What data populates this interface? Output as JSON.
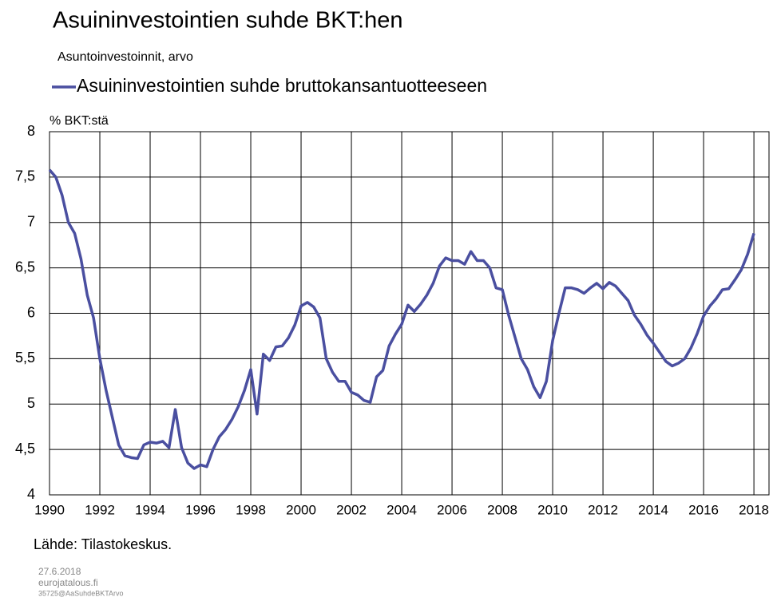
{
  "chart_data": {
    "type": "line",
    "title": "Asuininvestointien suhde BKT:hen",
    "subtitle": "Asuntoinvestoinnit, arvo",
    "y_label": "% BKT:stä",
    "source": "Lähde: Tilastokeskus.",
    "footer": [
      "27.6.2018",
      "eurojatalous.fi",
      "35725@AaSuhdeBKTArvo"
    ],
    "x": [
      1990,
      1990.25,
      1990.5,
      1990.75,
      1991,
      1991.25,
      1991.5,
      1991.75,
      1992,
      1992.25,
      1992.5,
      1992.75,
      1993,
      1993.25,
      1993.5,
      1993.75,
      1994,
      1994.25,
      1994.5,
      1994.75,
      1995,
      1995.25,
      1995.5,
      1995.75,
      1996,
      1996.25,
      1996.5,
      1996.75,
      1997,
      1997.25,
      1997.5,
      1997.75,
      1998,
      1998.25,
      1998.5,
      1998.75,
      1999,
      1999.25,
      1999.5,
      1999.75,
      2000,
      2000.25,
      2000.5,
      2000.75,
      2001,
      2001.25,
      2001.5,
      2001.75,
      2002,
      2002.25,
      2002.5,
      2002.75,
      2003,
      2003.25,
      2003.5,
      2003.75,
      2004,
      2004.25,
      2004.5,
      2004.75,
      2005,
      2005.25,
      2005.5,
      2005.75,
      2006,
      2006.25,
      2006.5,
      2006.75,
      2007,
      2007.25,
      2007.5,
      2007.75,
      2008,
      2008.25,
      2008.5,
      2008.75,
      2009,
      2009.25,
      2009.5,
      2009.75,
      2010,
      2010.25,
      2010.5,
      2010.75,
      2011,
      2011.25,
      2011.5,
      2011.75,
      2012,
      2012.25,
      2012.5,
      2012.75,
      2013,
      2013.25,
      2013.5,
      2013.75,
      2014,
      2014.25,
      2014.5,
      2014.75,
      2015,
      2015.25,
      2015.5,
      2015.75,
      2016,
      2016.25,
      2016.5,
      2016.75,
      2017,
      2017.25,
      2017.5,
      2017.75,
      2018
    ],
    "series": [
      {
        "name": "Asuininvestointien suhde bruttokansantuotteeseen",
        "color": "#4a4fa0",
        "values": [
          7.58,
          7.5,
          7.3,
          7.0,
          6.88,
          6.6,
          6.2,
          5.95,
          5.5,
          5.15,
          4.85,
          4.55,
          4.43,
          4.41,
          4.4,
          4.55,
          4.58,
          4.57,
          4.59,
          4.52,
          4.94,
          4.52,
          4.35,
          4.29,
          4.33,
          4.31,
          4.5,
          4.64,
          4.72,
          4.83,
          4.97,
          5.15,
          5.38,
          4.89,
          5.55,
          5.48,
          5.63,
          5.64,
          5.73,
          5.87,
          6.08,
          6.12,
          6.07,
          5.95,
          5.5,
          5.35,
          5.25,
          5.25,
          5.13,
          5.1,
          5.04,
          5.02,
          5.3,
          5.37,
          5.64,
          5.77,
          5.88,
          6.09,
          6.02,
          6.1,
          6.2,
          6.33,
          6.52,
          6.61,
          6.58,
          6.58,
          6.54,
          6.68,
          6.58,
          6.58,
          6.5,
          6.28,
          6.26,
          5.98,
          5.74,
          5.5,
          5.38,
          5.19,
          5.07,
          5.25,
          5.7,
          6.0,
          6.28,
          6.28,
          6.26,
          6.22,
          6.28,
          6.33,
          6.27,
          6.34,
          6.3,
          6.22,
          6.14,
          5.98,
          5.88,
          5.76,
          5.67,
          5.57,
          5.47,
          5.42,
          5.45,
          5.5,
          5.62,
          5.78,
          5.97,
          6.08,
          6.16,
          6.26,
          6.27,
          6.37,
          6.48,
          6.65,
          6.88
        ]
      }
    ],
    "xlim": [
      1990,
      2018.6
    ],
    "xticks": [
      1990,
      1992,
      1994,
      1996,
      1998,
      2000,
      2002,
      2004,
      2006,
      2008,
      2010,
      2012,
      2014,
      2016,
      2018
    ],
    "ylim": [
      4,
      8
    ],
    "yticks": [
      4,
      {
        "value": 4.5,
        "label": "4,5"
      },
      5,
      {
        "value": 5.5,
        "label": "5,5"
      },
      6,
      {
        "value": 6.5,
        "label": "6,5"
      },
      7,
      {
        "value": 7.5,
        "label": "7,5"
      },
      8
    ],
    "grid": true
  }
}
